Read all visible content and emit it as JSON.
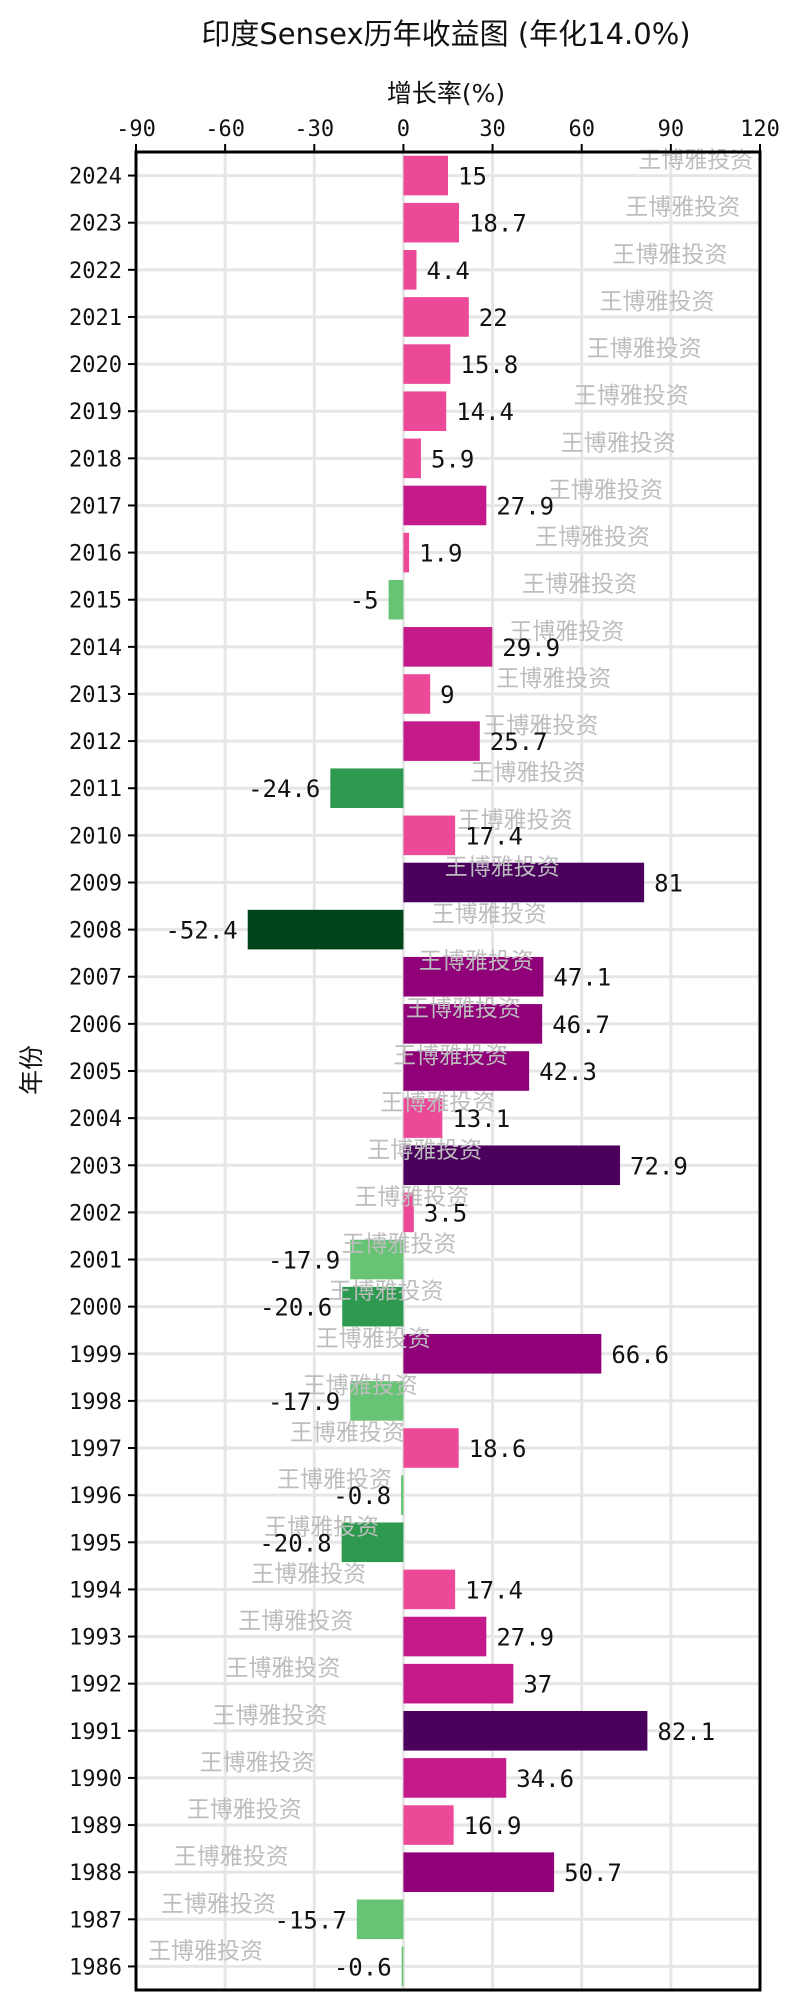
{
  "chart_data": {
    "type": "bar",
    "orientation": "horizontal",
    "title": "印度Sensex历年收益图 (年化14.0%)",
    "xlabel": "增长率(%)",
    "ylabel": "年份",
    "xlim": [
      -90,
      120
    ],
    "xticks": [
      -90,
      -60,
      -30,
      0,
      30,
      60,
      90,
      120
    ],
    "x_axis_position": "top",
    "grid": true,
    "watermark": "王博雅投资",
    "categories": [
      "2024",
      "2023",
      "2022",
      "2021",
      "2020",
      "2019",
      "2018",
      "2017",
      "2016",
      "2015",
      "2014",
      "2013",
      "2012",
      "2011",
      "2010",
      "2009",
      "2008",
      "2007",
      "2006",
      "2005",
      "2004",
      "2003",
      "2002",
      "2001",
      "2000",
      "1999",
      "1998",
      "1997",
      "1996",
      "1995",
      "1994",
      "1993",
      "1992",
      "1991",
      "1990",
      "1989",
      "1988",
      "1987",
      "1986"
    ],
    "values": [
      15,
      18.7,
      4.4,
      22,
      15.8,
      14.4,
      5.9,
      27.9,
      1.9,
      -5,
      29.9,
      9,
      25.7,
      -24.6,
      17.4,
      81,
      -52.4,
      47.1,
      46.7,
      42.3,
      13.1,
      72.9,
      3.5,
      -17.9,
      -20.6,
      66.6,
      -17.9,
      18.6,
      -0.8,
      -20.8,
      17.4,
      27.9,
      37,
      82.1,
      34.6,
      16.9,
      50.7,
      -15.7,
      -0.6
    ],
    "colors": {
      "positive_low": "#ec4a99",
      "positive_mid": "#c41a8a",
      "positive_high": "#8f0079",
      "positive_max": "#4b005e",
      "negative_low": "#66c474",
      "negative_mid": "#2e9a4f",
      "negative_max": "#00441b"
    }
  }
}
